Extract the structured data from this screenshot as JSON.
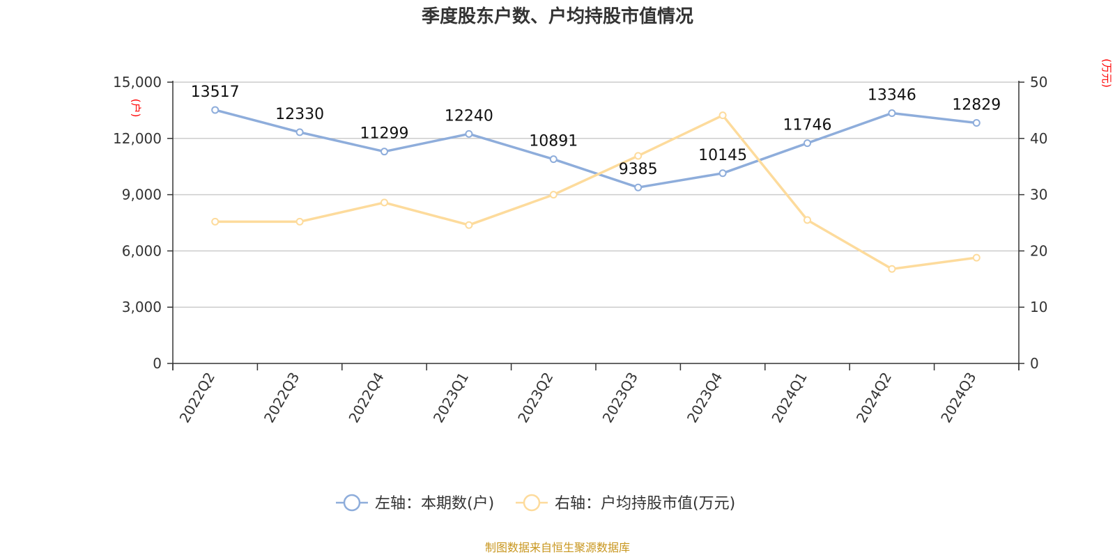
{
  "chart_data": {
    "type": "line",
    "title": "季度股东户数、户均持股市值情况",
    "categories": [
      "2022Q2",
      "2022Q3",
      "2022Q4",
      "2023Q1",
      "2023Q2",
      "2023Q3",
      "2023Q4",
      "2024Q1",
      "2024Q2",
      "2024Q3"
    ],
    "left_axis": {
      "unit": "(户)",
      "ylim": [
        0,
        15000
      ],
      "ticks": [
        "0",
        "3,000",
        "6,000",
        "9,000",
        "12,000",
        "15,000"
      ]
    },
    "right_axis": {
      "unit": "(万元)",
      "ylim": [
        0,
        50
      ],
      "ticks": [
        "0",
        "10",
        "20",
        "30",
        "40",
        "50"
      ]
    },
    "grid": true,
    "legend_position": "bottom",
    "series": [
      {
        "name": "左轴：本期数(户)",
        "axis": "left",
        "color": "#8eaddb",
        "values": [
          13517,
          12330,
          11299,
          12240,
          10891,
          9385,
          10145,
          11746,
          13346,
          12829
        ],
        "labels": [
          "13517",
          "12330",
          "11299",
          "12240",
          "10891",
          "9385",
          "10145",
          "11746",
          "13346",
          "12829"
        ]
      },
      {
        "name": "右轴：户均持股市值(万元)",
        "axis": "right",
        "color": "#fddb9c",
        "values": [
          25.2,
          25.2,
          28.6,
          24.6,
          30.0,
          36.9,
          44.1,
          25.5,
          16.8,
          18.8
        ]
      }
    ],
    "source": "制图数据来自恒生聚源数据库"
  }
}
